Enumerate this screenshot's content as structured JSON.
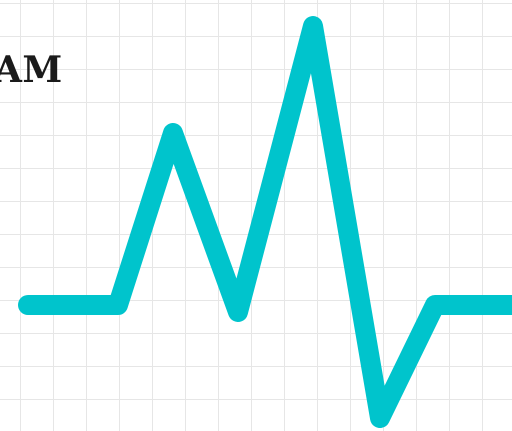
{
  "heading": {
    "text": "AM"
  },
  "colors": {
    "pulse_line": "#00c4cc",
    "grid": "#e6e6e6",
    "background": "#ffffff",
    "heading_text": "#1a1a1a"
  },
  "icons": {
    "pulse": "heartbeat-pulse-line"
  }
}
